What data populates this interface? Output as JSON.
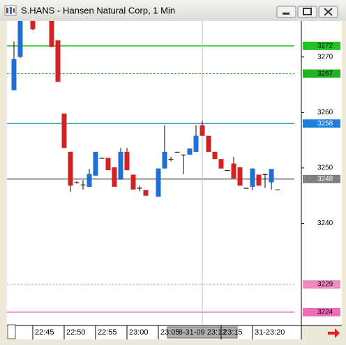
{
  "window": {
    "title": "S.HANS - Hansen Natural Corp, 1 Min"
  },
  "chart_data": {
    "type": "candlestick",
    "categories": [
      null,
      null,
      null,
      "22:45",
      null,
      null,
      null,
      null,
      "22:50",
      null,
      null,
      null,
      null,
      "22:55",
      null,
      null,
      null,
      null,
      "23:00",
      null,
      null,
      null,
      null,
      "23:05",
      null,
      null,
      null,
      null,
      null,
      null,
      null,
      null,
      null,
      "23:15",
      null,
      null,
      null,
      null,
      "31-23:20",
      null,
      null,
      null,
      null
    ],
    "series": [
      {
        "open": [
          3264.0,
          3270.0,
          null,
          3276.8,
          null,
          null,
          3277.0,
          3273.0,
          3259.8,
          3252.9,
          3247.4,
          3247.0,
          3246.6,
          3248.6,
          3251.8,
          3251.8,
          3250.1,
          3247.9,
          3252.9,
          3248.8,
          3246.4,
          3246.0,
          null,
          3244.8,
          3249.9,
          3251.6,
          3252.9,
          3252.4,
          3252.4,
          3252.9,
          3257.7,
          3255.8,
          3252.9,
          3251.6,
          3249.6,
          3250.8,
          3250.1,
          3246.4,
          3246.6,
          3248.8,
          3248.9,
          3247.4,
          3246.1
        ],
        "high": [
          3272.8,
          3277.0,
          null,
          3277.0,
          null,
          null,
          3277.0,
          3273.0,
          3259.8,
          3252.9,
          3247.6,
          3247.8,
          3249.8,
          3252.9,
          3251.8,
          3251.8,
          3250.1,
          3253.6,
          3253.6,
          3248.8,
          3246.8,
          3246.0,
          null,
          3249.9,
          3257.7,
          3252.0,
          3252.9,
          3252.4,
          3253.5,
          3257.7,
          3258.5,
          3255.8,
          3252.9,
          3251.6,
          3249.6,
          3252.0,
          3250.1,
          3246.4,
          3249.9,
          3248.8,
          3248.9,
          3249.8,
          3246.1
        ],
        "low": [
          3264.0,
          3269.8,
          null,
          3274.8,
          null,
          null,
          3271.8,
          3265.5,
          3253.6,
          3245.7,
          3247.2,
          3246.1,
          3246.6,
          3248.6,
          3251.8,
          3249.6,
          3246.6,
          3247.9,
          3249.6,
          3246.1,
          3245.8,
          3245.0,
          null,
          3244.8,
          3249.9,
          3251.2,
          3252.9,
          3248.9,
          3252.4,
          3252.9,
          3255.8,
          3252.9,
          3251.6,
          3249.9,
          3249.6,
          3248.1,
          3246.8,
          3246.4,
          3246.0,
          3246.8,
          3246.4,
          3246.1,
          3246.1
        ],
        "close": [
          3269.6,
          3276.8,
          null,
          3275.0,
          null,
          null,
          3271.8,
          3265.5,
          3253.6,
          3246.8,
          3247.4,
          3247.0,
          3248.9,
          3252.9,
          3251.8,
          3249.6,
          3246.6,
          3252.9,
          3249.6,
          3246.1,
          3246.4,
          3245.0,
          null,
          3249.9,
          3252.9,
          3251.6,
          3252.9,
          3252.4,
          3253.5,
          3255.8,
          3255.8,
          3252.9,
          3251.6,
          3249.9,
          3249.6,
          3248.1,
          3246.8,
          3246.4,
          3249.9,
          3246.8,
          3248.9,
          3249.8,
          3246.1
        ],
        "up_color": "#1f6fd6",
        "down_color": "#d42222"
      }
    ],
    "ylim": [
      3221.6,
      3276.5
    ],
    "yticks": [
      3240,
      3250,
      3260,
      3270
    ],
    "levels": [
      {
        "value": 3272,
        "color": "#22c322",
        "style": "solid",
        "label_color": "#000000"
      },
      {
        "value": 3267,
        "color": "#22b322",
        "style": "dashed",
        "label_color": "#000000"
      },
      {
        "value": 3258,
        "color": "#3a9ac8",
        "style": "solid",
        "label_color": "#ffffff",
        "box_color": "#1f7fe0"
      },
      {
        "value": 3248,
        "color": "#808080",
        "style": "solid",
        "label_color": "#ffffff"
      },
      {
        "value": 3229,
        "color": "#f08ac0",
        "style": "dashed",
        "label_color": "#000000"
      },
      {
        "value": 3224,
        "color": "#f06ab8",
        "style": "solid",
        "label_color": "#000000"
      }
    ],
    "crosshair_label": "8-31-09 23:12"
  }
}
